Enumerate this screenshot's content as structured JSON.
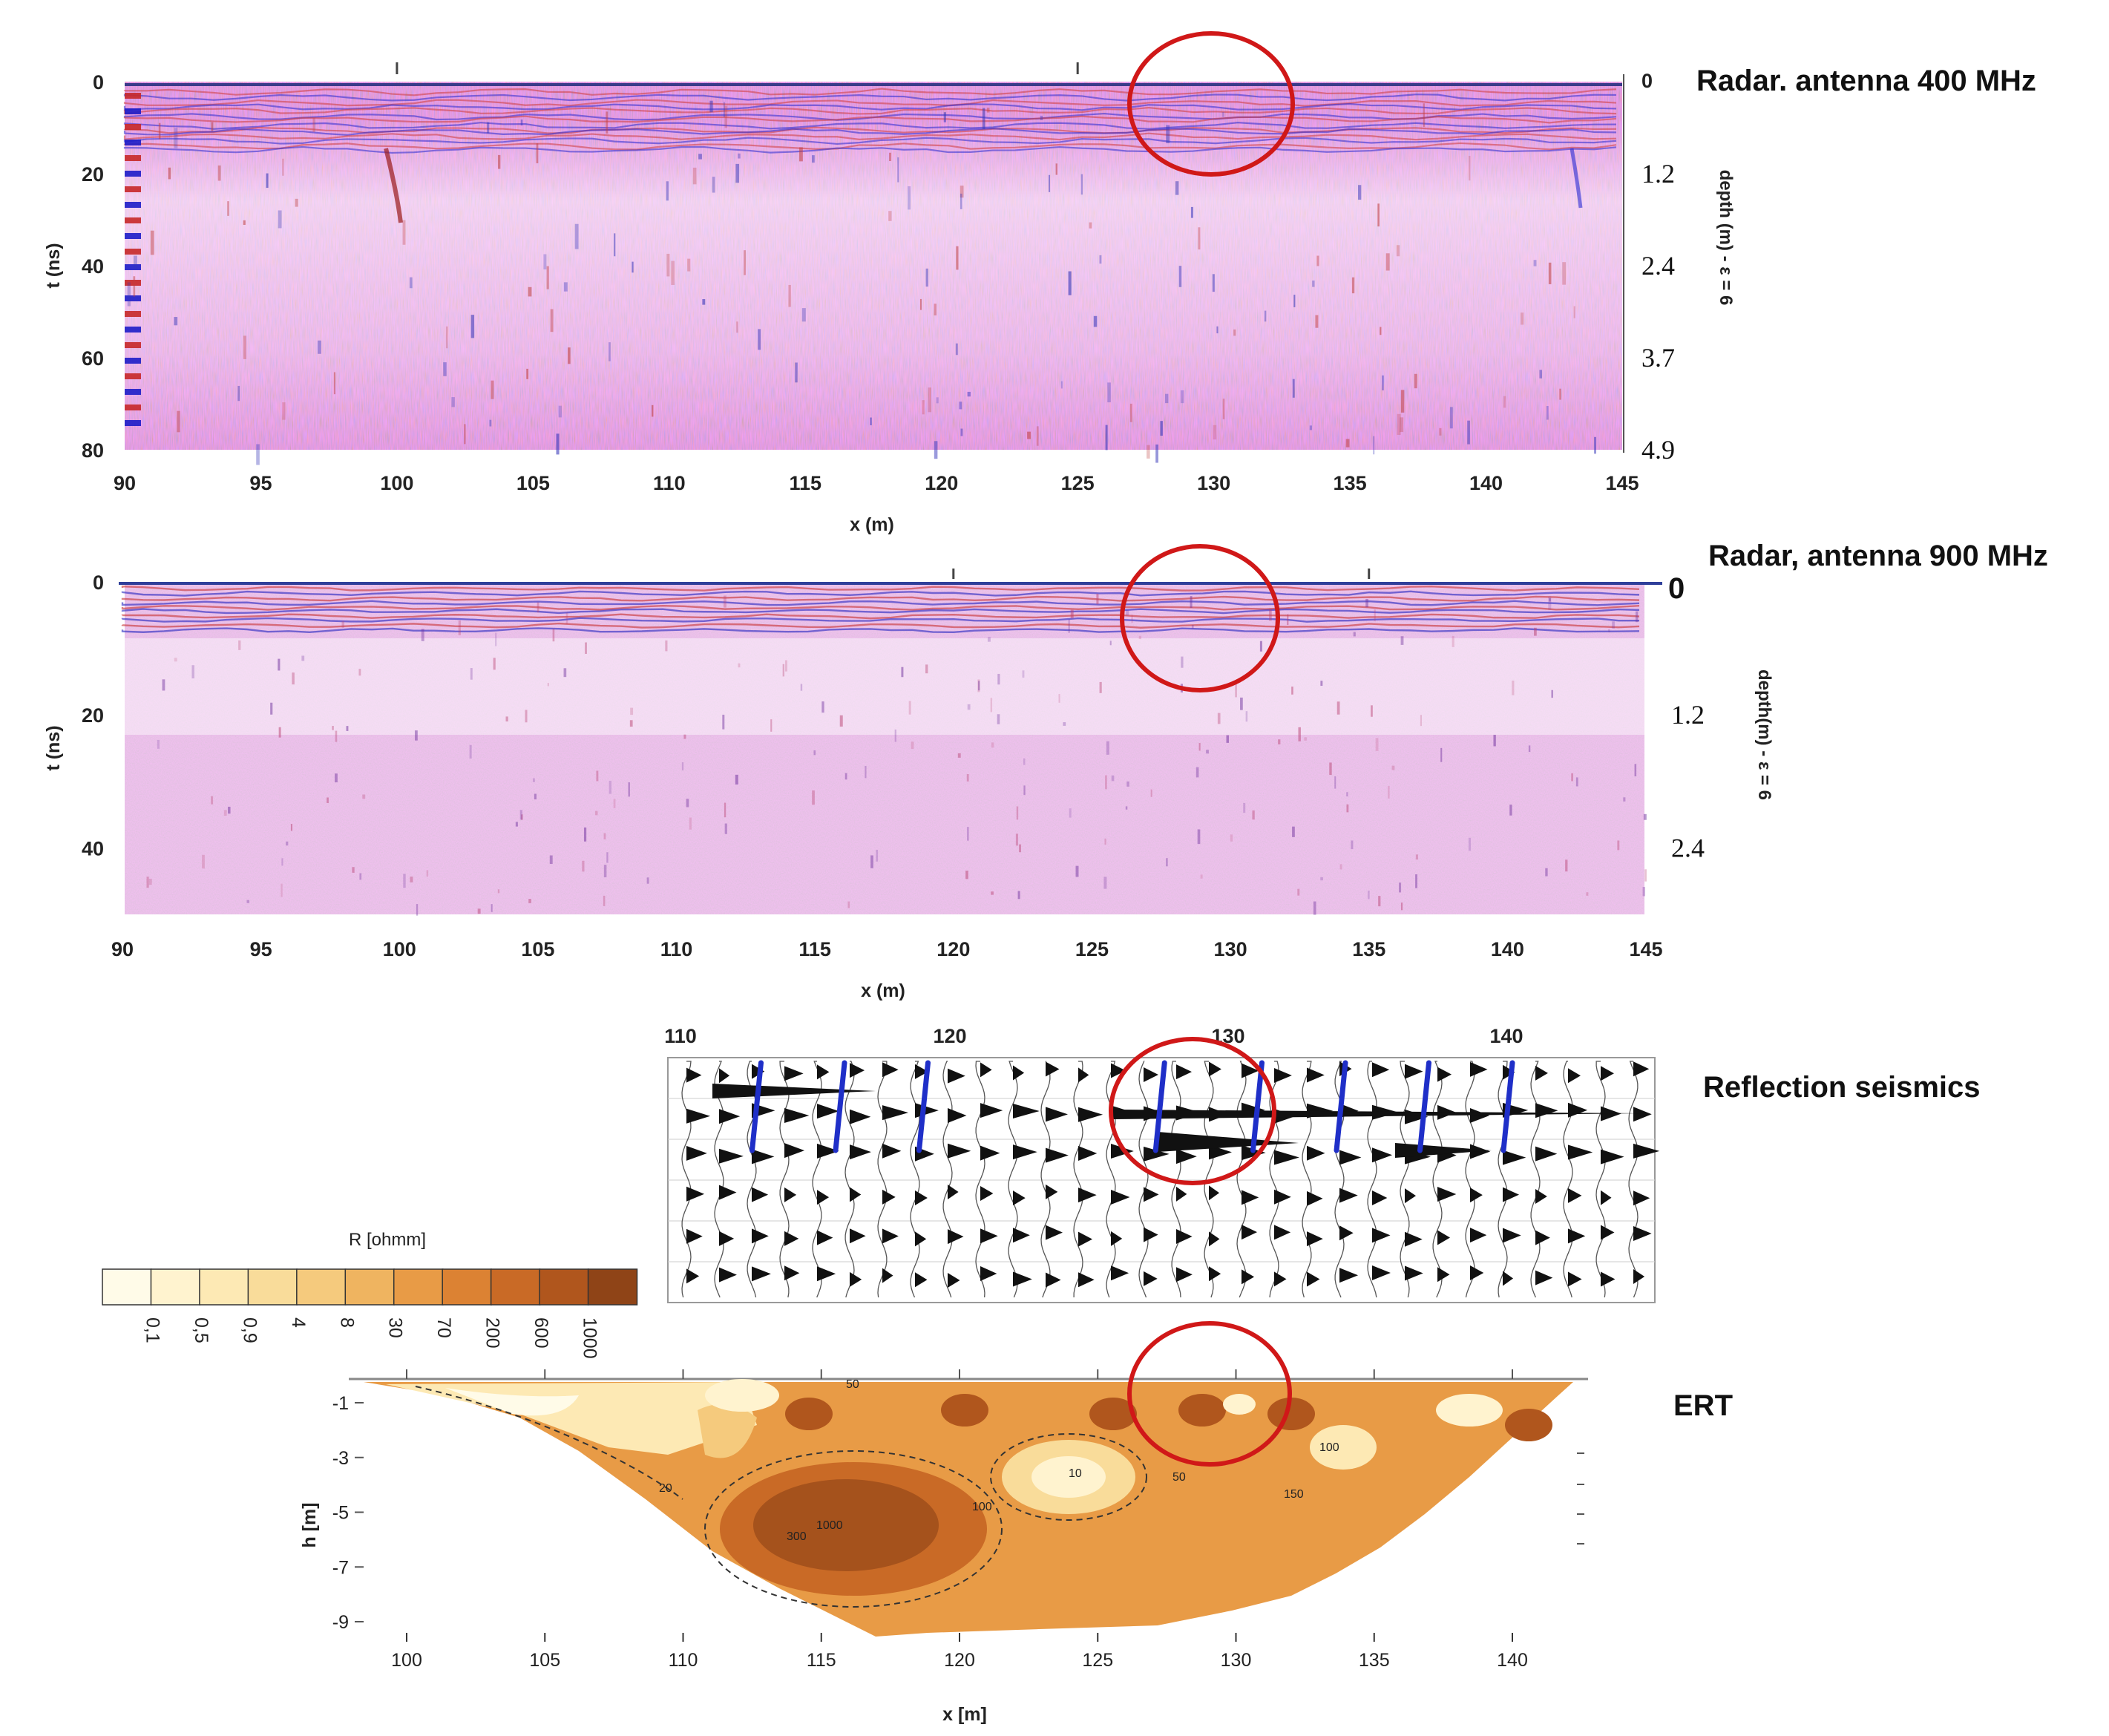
{
  "chart_data": [
    {
      "id": "radar400",
      "type": "heatmap",
      "title": "Radar. antenna 400 MHz",
      "xlabel": "x (m)",
      "ylabel": "t (ns)",
      "ylabel_right": "depth (m) - ε = 6",
      "xlim": [
        90,
        145
      ],
      "ylim": [
        80,
        0
      ],
      "x_ticks": [
        "90",
        "95",
        "100",
        "105",
        "110",
        "115",
        "120",
        "125",
        "130",
        "135",
        "140",
        "145"
      ],
      "y_ticks": [
        "0",
        "20",
        "40",
        "60",
        "80"
      ],
      "depth_ticks": [
        "0",
        "1.2",
        "2.4",
        "3.7",
        "4.9"
      ],
      "highlight": {
        "x_center": 130,
        "t_center": 5
      }
    },
    {
      "id": "radar900",
      "type": "heatmap",
      "title": "Radar, antenna 900 MHz",
      "xlabel": "x (m)",
      "ylabel": "t (ns)",
      "ylabel_right": "depth(m) - ε = 6",
      "xlim": [
        90,
        145
      ],
      "ylim": [
        50,
        0
      ],
      "x_ticks": [
        "90",
        "95",
        "100",
        "105",
        "110",
        "115",
        "120",
        "125",
        "130",
        "135",
        "140",
        "145"
      ],
      "y_ticks": [
        "0",
        "20",
        "40"
      ],
      "depth_ticks": [
        "0",
        "1.2",
        "2.4"
      ],
      "highlight": {
        "x_center": 129,
        "t_center": 7
      }
    },
    {
      "id": "seismic",
      "type": "line",
      "title": "Reflection seismics",
      "x_ticks": [
        "110",
        "120",
        "130",
        "140"
      ],
      "xlim": [
        110,
        145
      ],
      "blue_markers_x": [
        113,
        116,
        119,
        127.5,
        131,
        134,
        137,
        140
      ],
      "highlight": {
        "x_center": 129
      }
    },
    {
      "id": "ert",
      "type": "heatmap",
      "title": "ERT",
      "xlabel": "x [m]",
      "ylabel": "h [m]",
      "xlim": [
        97.5,
        143
      ],
      "ylim": [
        -9,
        0
      ],
      "x_ticks": [
        "100",
        "105",
        "110",
        "115",
        "120",
        "125",
        "130",
        "135",
        "140"
      ],
      "y_ticks": [
        "-1",
        "-3",
        "-5",
        "-7",
        "-9"
      ],
      "legend_title": "R [ohmm]",
      "legend_values": [
        "0,1",
        "0,5",
        "0,9",
        "4",
        "8",
        "30",
        "70",
        "200",
        "600",
        "1000"
      ],
      "legend_colors": [
        "#fffbe8",
        "#fff3cf",
        "#fde9b4",
        "#f9dc9a",
        "#f5ca7d",
        "#efb460",
        "#e89b46",
        "#dc8233",
        "#c96a26",
        "#b0561d",
        "#8f4417"
      ],
      "contour_labels": [
        "10",
        "50",
        "20",
        "100",
        "300",
        "1000",
        "150",
        "100",
        "50"
      ],
      "highlight": {
        "x_center": 129
      }
    }
  ]
}
